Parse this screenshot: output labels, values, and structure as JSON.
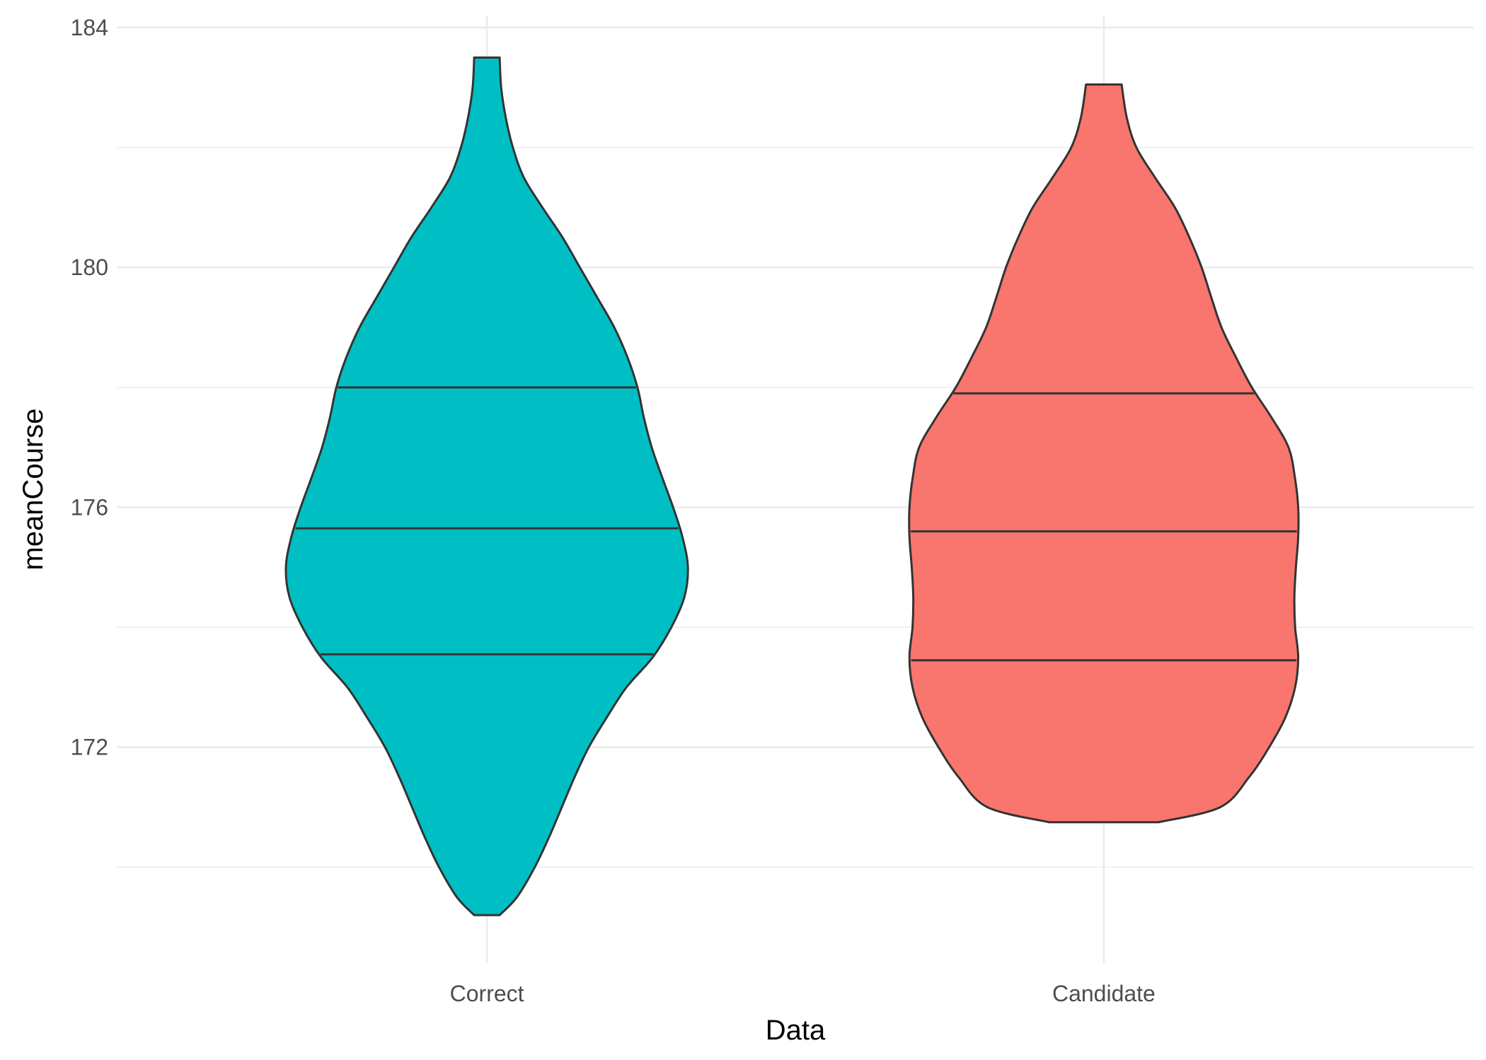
{
  "chart_data": {
    "type": "violin",
    "xlabel": "Data",
    "ylabel": "meanCourse",
    "categories": [
      "Correct",
      "Candidate"
    ],
    "ylim": [
      168.4,
      184.2
    ],
    "y_ticks": [
      172,
      176,
      180,
      184
    ],
    "y_minor_ticks": [
      170,
      174,
      178,
      182
    ],
    "grid": true,
    "legend": "none",
    "violins": [
      {
        "category": "Correct",
        "fill": "#00BFC4",
        "min": 169.2,
        "max": 183.5,
        "quantiles": {
          "q25": 173.55,
          "median": 175.65,
          "q75": 178.0
        },
        "profile": [
          [
            183.5,
            0.05
          ],
          [
            183.0,
            0.056
          ],
          [
            182.5,
            0.074
          ],
          [
            182.0,
            0.102
          ],
          [
            181.5,
            0.145
          ],
          [
            181.0,
            0.218
          ],
          [
            180.5,
            0.297
          ],
          [
            180.0,
            0.365
          ],
          [
            179.5,
            0.433
          ],
          [
            179.0,
            0.5
          ],
          [
            178.5,
            0.552
          ],
          [
            178.0,
            0.591
          ],
          [
            177.5,
            0.616
          ],
          [
            177.0,
            0.647
          ],
          [
            176.5,
            0.688
          ],
          [
            176.0,
            0.731
          ],
          [
            175.5,
            0.768
          ],
          [
            175.0,
            0.789
          ],
          [
            174.5,
            0.775
          ],
          [
            174.0,
            0.724
          ],
          [
            173.5,
            0.651
          ],
          [
            173.0,
            0.548
          ],
          [
            172.5,
            0.471
          ],
          [
            172.0,
            0.4
          ],
          [
            171.5,
            0.344
          ],
          [
            171.0,
            0.294
          ],
          [
            170.5,
            0.244
          ],
          [
            170.0,
            0.188
          ],
          [
            169.5,
            0.118
          ],
          [
            169.2,
            0.05
          ]
        ]
      },
      {
        "category": "Candidate",
        "fill": "#F8766D",
        "min": 170.75,
        "max": 183.05,
        "quantiles": {
          "q25": 173.45,
          "median": 175.6,
          "q75": 177.9
        },
        "profile": [
          [
            183.05,
            0.07
          ],
          [
            182.5,
            0.09
          ],
          [
            182.0,
            0.128
          ],
          [
            181.5,
            0.201
          ],
          [
            181.0,
            0.279
          ],
          [
            180.5,
            0.336
          ],
          [
            180.0,
            0.384
          ],
          [
            179.5,
            0.422
          ],
          [
            179.0,
            0.462
          ],
          [
            178.5,
            0.519
          ],
          [
            178.0,
            0.581
          ],
          [
            177.5,
            0.658
          ],
          [
            177.0,
            0.725
          ],
          [
            176.5,
            0.75
          ],
          [
            176.0,
            0.763
          ],
          [
            175.5,
            0.763
          ],
          [
            175.0,
            0.754
          ],
          [
            174.5,
            0.748
          ],
          [
            174.0,
            0.751
          ],
          [
            173.5,
            0.763
          ],
          [
            173.0,
            0.751
          ],
          [
            172.5,
            0.713
          ],
          [
            172.0,
            0.649
          ],
          [
            171.5,
            0.57
          ],
          [
            171.0,
            0.457
          ],
          [
            170.75,
            0.216
          ]
        ]
      }
    ]
  }
}
